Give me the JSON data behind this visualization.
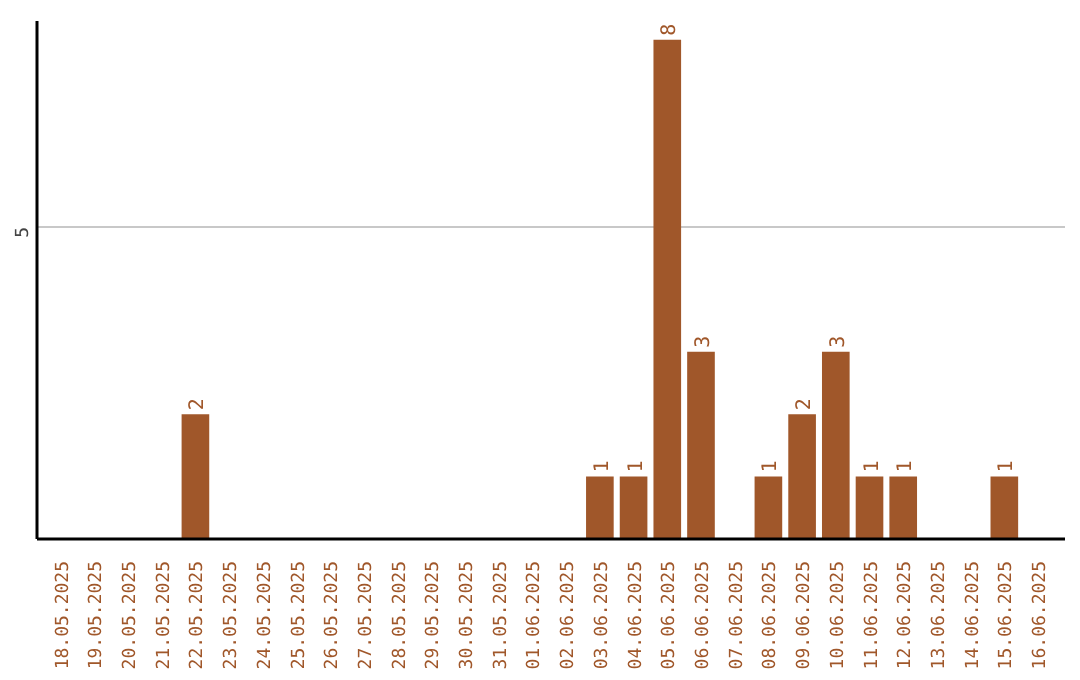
{
  "chart_data": {
    "type": "bar",
    "categories": [
      "18.05.2025",
      "19.05.2025",
      "20.05.2025",
      "21.05.2025",
      "22.05.2025",
      "23.05.2025",
      "24.05.2025",
      "25.05.2025",
      "26.05.2025",
      "27.05.2025",
      "28.05.2025",
      "29.05.2025",
      "30.05.2025",
      "31.05.2025",
      "01.06.2025",
      "02.06.2025",
      "03.06.2025",
      "04.06.2025",
      "05.06.2025",
      "06.06.2025",
      "07.06.2025",
      "08.06.2025",
      "09.06.2025",
      "10.06.2025",
      "11.06.2025",
      "12.06.2025",
      "13.06.2025",
      "14.06.2025",
      "15.06.2025",
      "16.06.2025"
    ],
    "values": [
      0,
      0,
      0,
      0,
      2,
      0,
      0,
      0,
      0,
      0,
      0,
      0,
      0,
      0,
      0,
      0,
      1,
      1,
      8,
      3,
      0,
      1,
      2,
      3,
      1,
      1,
      0,
      0,
      1,
      0
    ],
    "value_labels": [
      null,
      null,
      null,
      null,
      "2",
      null,
      null,
      null,
      null,
      null,
      null,
      null,
      null,
      null,
      null,
      null,
      "1",
      "1",
      "8",
      "3",
      null,
      "1",
      "2",
      "3",
      "1",
      "1",
      null,
      null,
      "1",
      null
    ],
    "color": "#a0572a",
    "ylim": [
      0,
      8.3
    ],
    "yticks": [
      5
    ],
    "grid": "y"
  }
}
